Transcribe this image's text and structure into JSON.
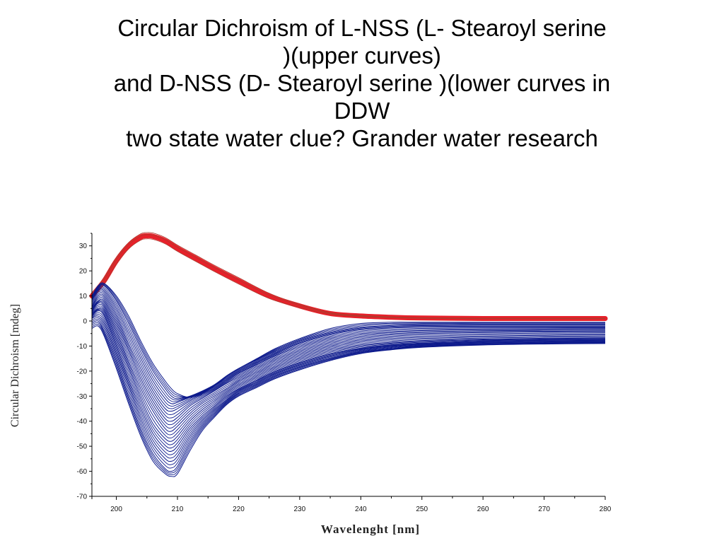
{
  "slide": {
    "title_lines": [
      "Circular Dichroism of L-NSS (L- Stearoyl serine",
      ")(upper curves)",
      "and D-NSS (D- Stearoyl serine )(lower curves in",
      "DDW",
      "two state water clue?  Grander water research"
    ]
  },
  "chart_data": {
    "type": "line",
    "xlabel": "Wavelenght [nm]",
    "ylabel": "Circular Dichroism [mdeg]",
    "xlim": [
      196,
      280
    ],
    "ylim": [
      -70,
      35
    ],
    "xticks": [
      200,
      210,
      220,
      230,
      240,
      250,
      260,
      270,
      280
    ],
    "yticks": [
      30,
      20,
      10,
      0,
      -10,
      -20,
      -30,
      -40,
      -50,
      -60,
      -70
    ],
    "grid": false,
    "colors": {
      "upper": "#e8202a",
      "upper_thin": "#b03a2e",
      "lower": "#0d1a8c"
    },
    "upper_curves": {
      "x": [
        196,
        198,
        200,
        202,
        204,
        205,
        206,
        208,
        210,
        213,
        216,
        220,
        225,
        230,
        235,
        240,
        245,
        250,
        260,
        270,
        280
      ],
      "y": [
        10,
        16,
        24,
        30,
        33.5,
        34,
        33.8,
        32,
        29,
        25,
        21,
        16,
        10,
        6,
        3,
        2,
        1.5,
        1.2,
        1,
        1,
        1
      ]
    },
    "lower_curves": {
      "x": [
        196,
        197,
        198,
        200,
        202,
        204,
        206,
        208,
        209,
        210,
        212,
        214,
        216,
        218,
        220,
        223,
        226,
        230,
        235,
        240,
        245,
        250,
        260,
        270,
        280
      ],
      "series": [
        {
          "y": [
            10,
            14,
            15,
            10,
            2,
            -8,
            -17,
            -24,
            -27,
            -29,
            -30.5,
            -29,
            -26,
            -22,
            -19,
            -15,
            -11,
            -7,
            -3,
            -1,
            -0.5,
            -0.5,
            -0.5,
            -0.5,
            -0.5
          ]
        },
        {
          "y": [
            9,
            13,
            14,
            8,
            -1,
            -11,
            -20,
            -27,
            -30,
            -31,
            -30,
            -28,
            -25.5,
            -22,
            -19,
            -15.5,
            -12,
            -8,
            -4.5,
            -2.5,
            -1.8,
            -1.5,
            -1.4,
            -1.4,
            -1.4
          ]
        },
        {
          "y": [
            8,
            12,
            12,
            5,
            -5,
            -15,
            -24,
            -31,
            -33,
            -32.5,
            -30.5,
            -28.5,
            -26,
            -23,
            -20,
            -16.5,
            -13,
            -9,
            -5.5,
            -3.5,
            -2.8,
            -2.5,
            -2.4,
            -2.4,
            -2.4
          ]
        },
        {
          "y": [
            6,
            10,
            10,
            2,
            -9,
            -19,
            -28,
            -35,
            -36,
            -35,
            -32,
            -29.5,
            -27,
            -24,
            -21,
            -17.5,
            -14,
            -10.5,
            -7,
            -5,
            -4.2,
            -3.8,
            -3.5,
            -3.4,
            -3.3
          ]
        },
        {
          "y": [
            5,
            8,
            8,
            -1,
            -12,
            -23,
            -32,
            -39,
            -40,
            -38.5,
            -34,
            -31,
            -28,
            -25,
            -22.5,
            -19,
            -15.5,
            -12,
            -8.5,
            -6.5,
            -5.5,
            -5,
            -4.6,
            -4.4,
            -4.3
          ]
        },
        {
          "y": [
            4,
            7,
            6,
            -4,
            -16,
            -27,
            -36,
            -43,
            -44,
            -42,
            -37,
            -33,
            -30,
            -27,
            -24,
            -20.5,
            -17,
            -13.5,
            -10,
            -8,
            -7,
            -6.5,
            -6,
            -5.7,
            -5.5
          ]
        },
        {
          "y": [
            3,
            5,
            4,
            -7,
            -19,
            -31,
            -41,
            -47,
            -48,
            -46,
            -40,
            -35.5,
            -32,
            -28.5,
            -25.5,
            -22,
            -18.5,
            -15,
            -11.5,
            -9.5,
            -8.5,
            -7.8,
            -7.2,
            -6.9,
            -6.7
          ]
        },
        {
          "y": [
            2,
            4,
            2,
            -10,
            -23,
            -35,
            -45,
            -51,
            -52,
            -50,
            -43,
            -38,
            -34,
            -30,
            -27,
            -23.5,
            -20,
            -16.5,
            -13,
            -10.8,
            -9.5,
            -8.8,
            -8,
            -7.6,
            -7.4
          ]
        },
        {
          "y": [
            1,
            2,
            -1,
            -13,
            -26,
            -39,
            -49,
            -55,
            -56,
            -54,
            -46,
            -40,
            -35.5,
            -31.5,
            -28,
            -24.5,
            -21,
            -17.5,
            -14,
            -11.5,
            -10.2,
            -9.4,
            -8.6,
            -8.2,
            -8
          ]
        },
        {
          "y": [
            -1,
            0,
            -4,
            -16,
            -30,
            -43,
            -53,
            -59,
            -60,
            -58,
            -49,
            -42,
            -37,
            -32.5,
            -29,
            -25.5,
            -22,
            -18.5,
            -15,
            -12.3,
            -11,
            -10,
            -9.2,
            -8.8,
            -8.5
          ]
        },
        {
          "y": [
            -3,
            -2,
            -6,
            -19,
            -33,
            -46,
            -56,
            -61,
            -62,
            -61,
            -52,
            -44,
            -38.5,
            -33.5,
            -30,
            -26.5,
            -23,
            -19.5,
            -15.8,
            -13,
            -11.5,
            -10.5,
            -9.6,
            -9.2,
            -9
          ]
        }
      ]
    }
  }
}
